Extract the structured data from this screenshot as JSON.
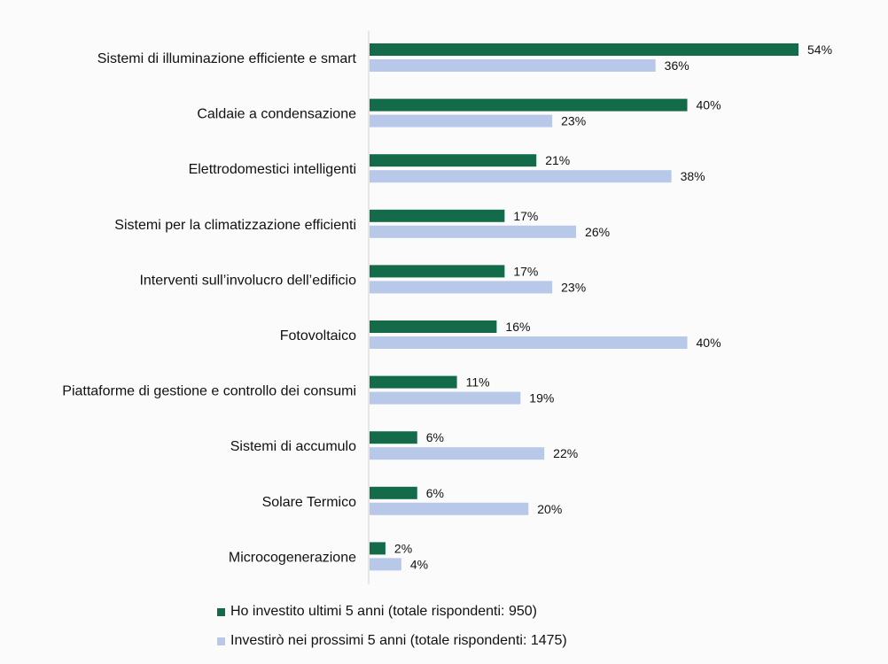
{
  "chart_data": {
    "type": "bar",
    "orientation": "horizontal",
    "categories": [
      "Sistemi di illuminazione efficiente e smart",
      "Caldaie a condensazione",
      "Elettrodomestici intelligenti",
      "Sistemi per la climatizzazione efficienti",
      "Interventi sull’involucro dell’edificio",
      "Fotovoltaico",
      "Piattaforme di gestione e controllo dei consumi",
      "Sistemi di accumulo",
      "Solare Termico",
      "Microcogenerazione"
    ],
    "series": [
      {
        "name": "Ho investito ultimi 5 anni (totale rispondenti: 950)",
        "color": "#146b4a",
        "values": [
          54,
          40,
          21,
          17,
          17,
          16,
          11,
          6,
          6,
          2
        ],
        "labels": [
          "54%",
          "40%",
          "21%",
          "17%",
          "17%",
          "16%",
          "11%",
          "6%",
          "6%",
          "2%"
        ]
      },
      {
        "name": "Investirò nei prossimi 5 anni (totale rispondenti: 1475)",
        "color": "#b7c8e8",
        "values": [
          36,
          23,
          38,
          26,
          23,
          40,
          19,
          22,
          20,
          4
        ],
        "labels": [
          "36%",
          "23%",
          "38%",
          "26%",
          "23%",
          "40%",
          "19%",
          "22%",
          "20%",
          "4%"
        ]
      }
    ],
    "xlim": [
      0,
      54
    ],
    "legend_position": "bottom",
    "grid": false,
    "title": "",
    "xlabel": "",
    "ylabel": ""
  }
}
